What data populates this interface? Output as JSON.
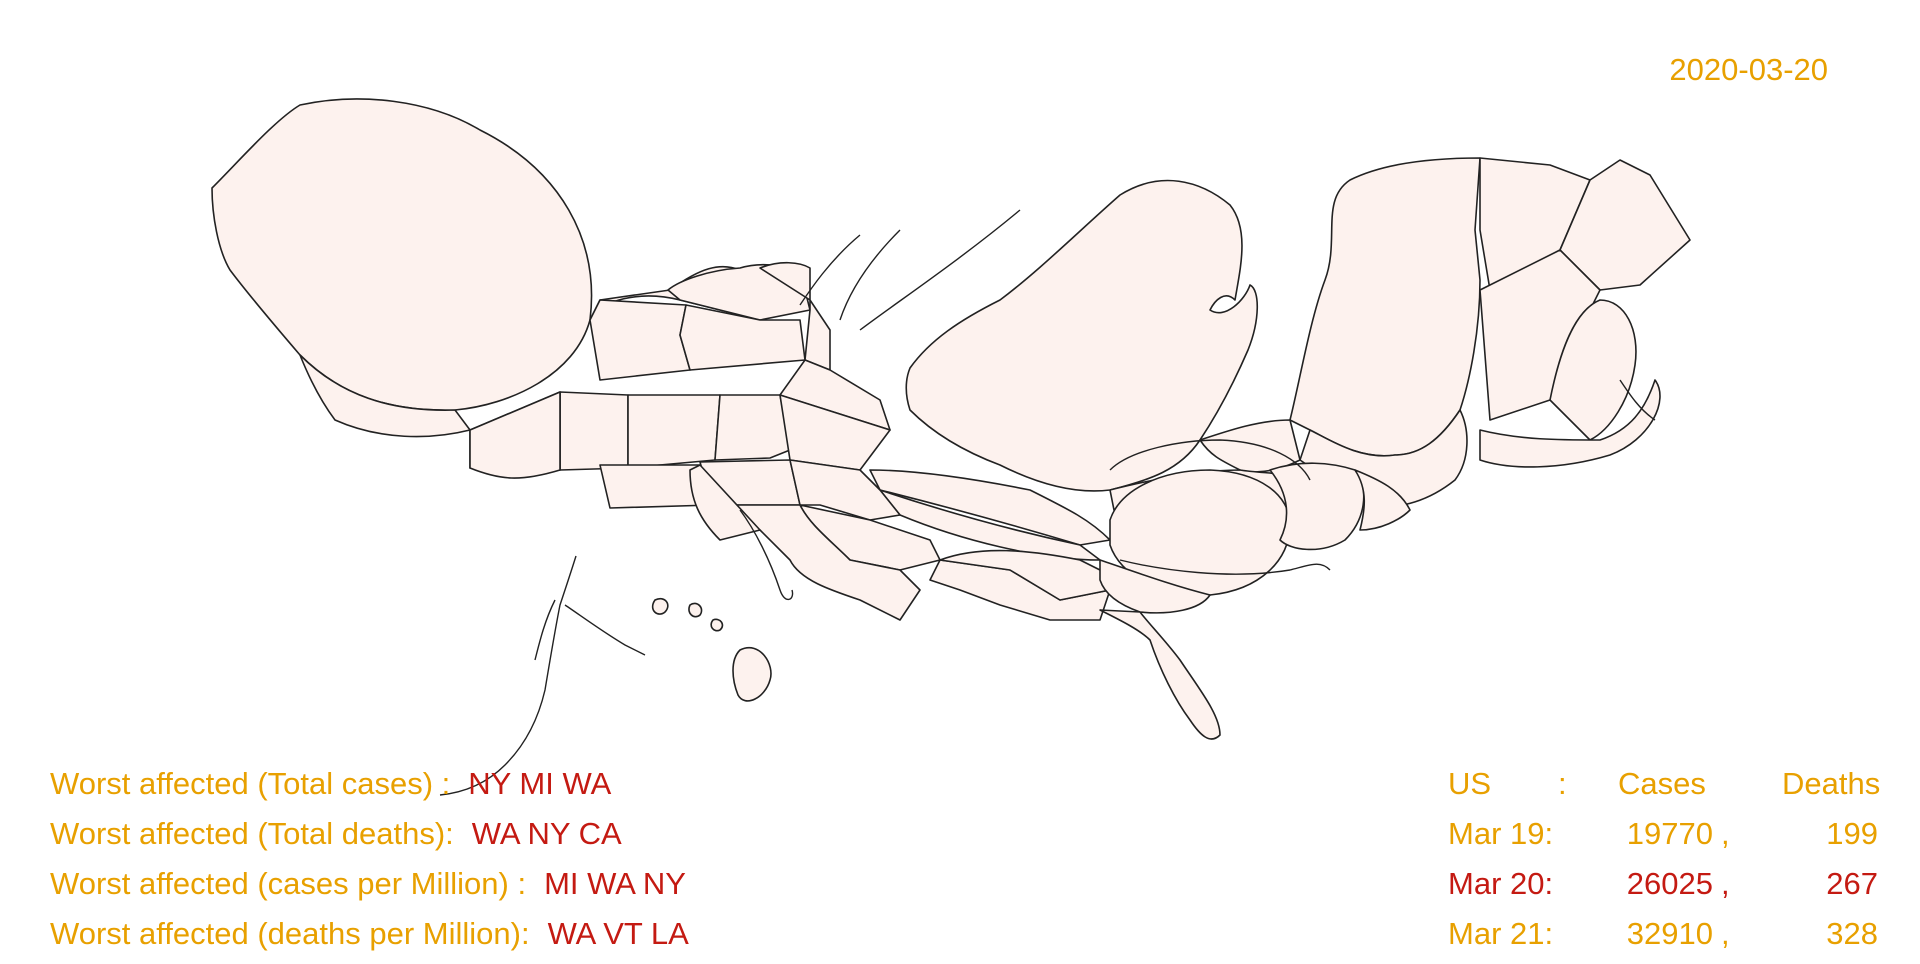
{
  "date": "2020-03-20",
  "summary": [
    {
      "label": "Worst affected (Total cases) :",
      "states": "NY MI WA"
    },
    {
      "label": "Worst affected (Total deaths):",
      "states": "WA NY CA"
    },
    {
      "label": "Worst affected (cases per Million) :",
      "states": "MI WA NY"
    },
    {
      "label": "Worst affected (deaths per Million):",
      "states": "WA VT LA"
    }
  ],
  "stats": {
    "header": {
      "region": "US",
      "sep": ":",
      "cases": "Cases",
      "deaths": "Deaths"
    },
    "rows": [
      {
        "date": "Mar 19:",
        "cases": "19770",
        "comma": ",",
        "deaths": "199",
        "highlight": false
      },
      {
        "date": "Mar 20:",
        "cases": "26025",
        "comma": ",",
        "deaths": "267",
        "highlight": true
      },
      {
        "date": "Mar 21:",
        "cases": "32910",
        "comma": ",",
        "deaths": "328",
        "highlight": false
      }
    ]
  },
  "colors": {
    "accent": "#e8a000",
    "highlight": "#c41a12",
    "state_fill": "#fdf2ee",
    "state_stroke": "#222222"
  }
}
